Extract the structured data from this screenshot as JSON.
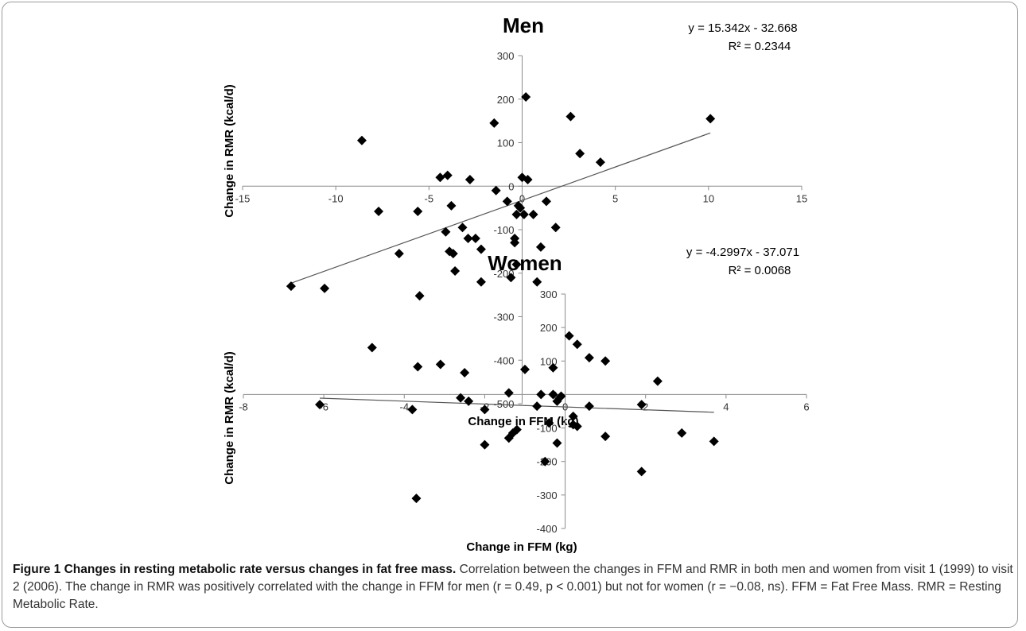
{
  "chart_data": [
    {
      "type": "scatter",
      "title": "Men",
      "xlabel": "Change in FFM (kg)",
      "ylabel": "Change in RMR (kcal/d)",
      "xlim": [
        -15,
        15
      ],
      "ylim": [
        -500,
        300
      ],
      "xticks": [
        -15,
        -10,
        -5,
        0,
        5,
        10,
        15
      ],
      "yticks": [
        300,
        200,
        100,
        0,
        -100,
        -200,
        -300,
        -400,
        -500
      ],
      "xtick_labels": [
        "-15",
        "-10",
        "-5",
        "0",
        "5",
        "10",
        "15"
      ],
      "ytick_labels": [
        "300",
        "200",
        "100",
        "0",
        "-100",
        "-200",
        "-300",
        "-400",
        "-500"
      ],
      "equation": "y = 15.342x - 32.668",
      "r2": "R² = 0.2344",
      "trendline": {
        "slope": 15.342,
        "intercept": -32.668,
        "x_range": [
          -12.4,
          10.1
        ]
      },
      "grid": false,
      "marker": "diamond",
      "color": "#000000",
      "points": [
        [
          -12.4,
          -230
        ],
        [
          -10.6,
          -235
        ],
        [
          -8.6,
          105
        ],
        [
          -7.7,
          -58
        ],
        [
          -6.6,
          -155
        ],
        [
          -5.6,
          -58
        ],
        [
          -5.5,
          -252
        ],
        [
          -5.6,
          -415
        ],
        [
          -4.4,
          20
        ],
        [
          -4.0,
          25
        ],
        [
          -4.1,
          -105
        ],
        [
          -3.8,
          -45
        ],
        [
          -3.9,
          -150
        ],
        [
          -3.7,
          -155
        ],
        [
          -3.6,
          -195
        ],
        [
          -3.2,
          -95
        ],
        [
          -2.9,
          -120
        ],
        [
          -2.8,
          15
        ],
        [
          -2.5,
          -120
        ],
        [
          -2.2,
          -145
        ],
        [
          -2.2,
          -220
        ],
        [
          -1.5,
          145
        ],
        [
          -1.4,
          -10
        ],
        [
          -0.8,
          -35
        ],
        [
          -0.6,
          -210
        ],
        [
          -0.4,
          -120
        ],
        [
          -0.4,
          -130
        ],
        [
          -0.3,
          -65
        ],
        [
          -0.3,
          -180
        ],
        [
          -0.2,
          -45
        ],
        [
          -0.1,
          -50
        ],
        [
          0.0,
          20
        ],
        [
          0.1,
          -65
        ],
        [
          0.2,
          205
        ],
        [
          0.3,
          15
        ],
        [
          0.6,
          -65
        ],
        [
          0.8,
          -220
        ],
        [
          1.0,
          -140
        ],
        [
          1.3,
          -35
        ],
        [
          1.8,
          -95
        ],
        [
          2.6,
          160
        ],
        [
          3.1,
          75
        ],
        [
          4.2,
          55
        ],
        [
          10.1,
          155
        ]
      ]
    },
    {
      "type": "scatter",
      "title": "Women",
      "xlabel": "Change in FFM (kg)",
      "ylabel": "Change in RMR (kcal/d)",
      "xlim": [
        -8,
        6
      ],
      "ylim": [
        -400,
        300
      ],
      "xticks": [
        -8,
        -6,
        -4,
        -2,
        0,
        2,
        4,
        6
      ],
      "yticks": [
        300,
        200,
        100,
        0,
        -100,
        -200,
        -300,
        -400
      ],
      "xtick_labels": [
        "-8",
        "-6",
        "-4",
        "-2",
        "0",
        "2",
        "4",
        "6"
      ],
      "ytick_labels": [
        "300",
        "200",
        "100",
        "0",
        "-100",
        "-200",
        "-300",
        "-400"
      ],
      "equation": "y = -4.2997x - 37.071",
      "r2": "R² = 0.0068",
      "trendline": {
        "slope": -4.2997,
        "intercept": -37.071,
        "x_range": [
          -6.1,
          3.7
        ]
      },
      "grid": false,
      "marker": "diamond",
      "color": "#000000",
      "points": [
        [
          -6.1,
          -30
        ],
        [
          -4.8,
          140
        ],
        [
          -3.8,
          -45
        ],
        [
          -3.7,
          -310
        ],
        [
          -3.1,
          90
        ],
        [
          -2.6,
          -10
        ],
        [
          -2.5,
          65
        ],
        [
          -2.4,
          -20
        ],
        [
          -2.0,
          -45
        ],
        [
          -2.0,
          -150
        ],
        [
          -1.4,
          5
        ],
        [
          -1.4,
          -130
        ],
        [
          -1.3,
          -115
        ],
        [
          -1.2,
          -105
        ],
        [
          -1.0,
          75
        ],
        [
          -0.7,
          -35
        ],
        [
          -0.6,
          0
        ],
        [
          -0.5,
          -200
        ],
        [
          -0.4,
          -85
        ],
        [
          -0.3,
          80
        ],
        [
          -0.3,
          0
        ],
        [
          -0.2,
          -20
        ],
        [
          -0.2,
          -145
        ],
        [
          -0.1,
          -5
        ],
        [
          0.1,
          175
        ],
        [
          0.2,
          -65
        ],
        [
          0.2,
          -90
        ],
        [
          0.3,
          -95
        ],
        [
          0.3,
          150
        ],
        [
          0.6,
          110
        ],
        [
          0.6,
          -35
        ],
        [
          1.0,
          100
        ],
        [
          1.0,
          -125
        ],
        [
          1.9,
          -30
        ],
        [
          1.9,
          -230
        ],
        [
          2.3,
          40
        ],
        [
          2.9,
          -115
        ],
        [
          3.7,
          -140
        ]
      ]
    }
  ],
  "caption": {
    "title": "Figure 1 Changes in resting metabolic rate versus changes in fat free mass.",
    "text": " Correlation between the changes in FFM and RMR in both men and women from visit 1 (1999) to visit 2 (2006). The change in RMR was positively correlated with the change in FFM for men (r = 0.49, p < 0.001) but not for women (r = −0.08, ns). FFM = Fat Free Mass. RMR = Resting Metabolic Rate."
  }
}
